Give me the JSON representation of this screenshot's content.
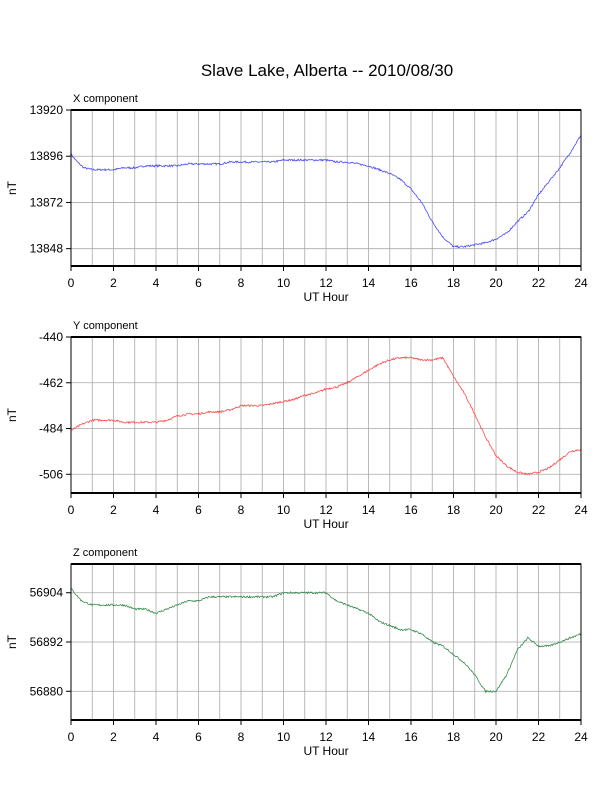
{
  "title": "Slave Lake, Alberta -- 2010/08/30",
  "colors": {
    "x_component": "#4a4aff",
    "y_component": "#ff4a4a",
    "z_component": "#3a8a50",
    "grid": "#a9a9a9",
    "frame": "#000000"
  },
  "chart_data": [
    {
      "type": "line",
      "panel_label": "X component",
      "xlabel": "UT Hour",
      "ylabel": "nT",
      "xlim": [
        0,
        24
      ],
      "ylim": [
        13839,
        13920
      ],
      "xticks": [
        0,
        2,
        4,
        6,
        8,
        10,
        12,
        14,
        16,
        18,
        20,
        22,
        24
      ],
      "yticks": [
        13848,
        13872,
        13896,
        13920
      ],
      "grid": true,
      "series": [
        {
          "x": [
            0,
            0.3,
            0.6,
            1.0,
            1.5,
            2.0,
            2.5,
            3.0,
            3.5,
            4.0,
            4.5,
            5.0,
            5.5,
            6.0,
            6.5,
            7.0,
            7.5,
            8.0,
            8.5,
            9.0,
            9.5,
            10.0,
            10.5,
            11.0,
            11.5,
            12.0,
            12.5,
            13.0,
            13.5,
            14.0,
            14.5,
            15.0,
            15.5,
            16.0,
            16.5,
            17.0,
            17.5,
            18.0,
            18.5,
            19.0,
            19.5,
            20.0,
            20.5,
            21.0,
            21.5,
            22.0,
            22.5,
            23.0,
            23.5,
            24.0
          ],
          "values": [
            13897,
            13893,
            13890,
            13889,
            13889,
            13889,
            13890,
            13890,
            13891,
            13891,
            13891,
            13891,
            13892,
            13892,
            13892,
            13892,
            13893,
            13893,
            13893,
            13893,
            13893,
            13894,
            13894,
            13894,
            13894,
            13894,
            13893,
            13893,
            13892,
            13891,
            13889,
            13887,
            13884,
            13879,
            13872,
            13862,
            13854,
            13849,
            13849,
            13850,
            13851,
            13853,
            13856,
            13862,
            13867,
            13876,
            13883,
            13890,
            13898,
            13907
          ]
        }
      ]
    },
    {
      "type": "line",
      "panel_label": "Y component",
      "xlabel": "UT Hour",
      "ylabel": "nT",
      "xlim": [
        0,
        24
      ],
      "ylim": [
        -515,
        -440
      ],
      "xticks": [
        0,
        2,
        4,
        6,
        8,
        10,
        12,
        14,
        16,
        18,
        20,
        22,
        24
      ],
      "yticks": [
        -440,
        -462,
        -484,
        -506
      ],
      "grid": true,
      "series": [
        {
          "x": [
            0,
            0.5,
            1.0,
            1.5,
            2.0,
            2.5,
            3.0,
            3.5,
            4.0,
            4.5,
            5.0,
            5.5,
            6.0,
            6.5,
            7.0,
            7.5,
            8.0,
            8.5,
            9.0,
            9.5,
            10.0,
            10.5,
            11.0,
            11.5,
            12.0,
            12.5,
            13.0,
            13.5,
            14.0,
            14.5,
            15.0,
            15.5,
            16.0,
            16.5,
            17.0,
            17.5,
            18.0,
            18.5,
            19.0,
            19.5,
            20.0,
            20.5,
            21.0,
            21.5,
            22.0,
            22.5,
            23.0,
            23.5,
            24.0
          ],
          "values": [
            -485,
            -482,
            -480,
            -480,
            -480,
            -481,
            -481,
            -481,
            -481,
            -480,
            -478,
            -477,
            -477,
            -476,
            -476,
            -475,
            -473,
            -473,
            -473,
            -472,
            -471,
            -470,
            -468,
            -467,
            -465,
            -464,
            -462,
            -459,
            -456,
            -453,
            -451,
            -450,
            -450,
            -451,
            -451,
            -450,
            -459,
            -467,
            -477,
            -488,
            -497,
            -502,
            -505,
            -506,
            -505,
            -503,
            -499,
            -495,
            -494
          ]
        }
      ]
    },
    {
      "type": "line",
      "panel_label": "Z component",
      "xlabel": "UT Hour",
      "ylabel": "nT",
      "xlim": [
        0,
        24
      ],
      "ylim": [
        56873,
        56911
      ],
      "xticks": [
        0,
        2,
        4,
        6,
        8,
        10,
        12,
        14,
        16,
        18,
        20,
        22,
        24
      ],
      "yticks": [
        56880,
        56892,
        56904
      ],
      "grid": true,
      "series": [
        {
          "x": [
            0,
            0.5,
            1.0,
            1.5,
            2.0,
            2.5,
            3.0,
            3.5,
            4.0,
            4.5,
            5.0,
            5.5,
            6.0,
            6.5,
            7.0,
            7.5,
            8.0,
            8.5,
            9.0,
            9.5,
            10.0,
            10.5,
            11.0,
            11.5,
            12.0,
            12.5,
            13.0,
            13.5,
            14.0,
            14.5,
            15.0,
            15.5,
            16.0,
            16.5,
            17.0,
            17.5,
            18.0,
            18.5,
            19.0,
            19.5,
            20.0,
            20.5,
            21.0,
            21.5,
            22.0,
            22.5,
            23.0,
            23.5,
            24.0
          ],
          "values": [
            56905,
            56902,
            56901,
            56901,
            56901,
            56901,
            56900,
            56900,
            56899,
            56900,
            56901,
            56902,
            56902,
            56903,
            56903,
            56903,
            56903,
            56903,
            56903,
            56903,
            56904,
            56904,
            56904,
            56904,
            56904,
            56902,
            56901,
            56900,
            56899,
            56897,
            56896,
            56895,
            56895,
            56894,
            56892,
            56891,
            56889,
            56887,
            56884,
            56880,
            56880,
            56884,
            56890,
            56893,
            56891,
            56891,
            56892,
            56893,
            56894
          ]
        }
      ]
    }
  ]
}
